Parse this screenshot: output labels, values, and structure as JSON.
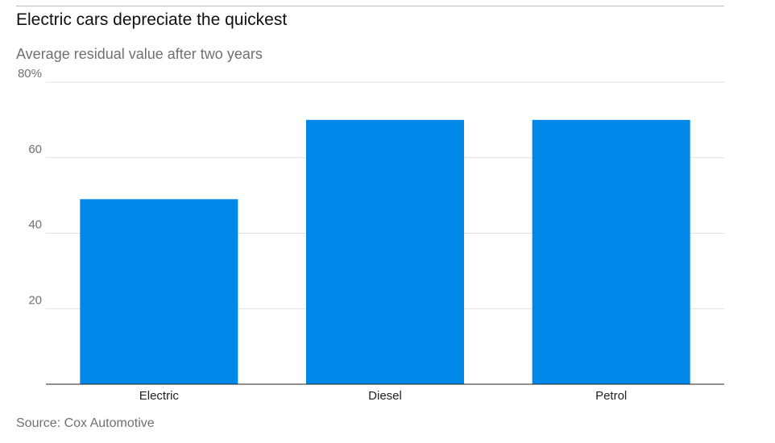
{
  "chart_data": {
    "type": "bar",
    "title": "Electric cars depreciate the quickest",
    "subtitle": "Average residual value after two years",
    "source": "Source: Cox Automotive",
    "xlabel": "",
    "ylabel": "",
    "categories": [
      "Electric",
      "Diesel",
      "Petrol"
    ],
    "values": [
      49,
      70,
      70
    ],
    "ylim": [
      0,
      80
    ],
    "yticks": [
      20,
      40,
      60,
      80
    ],
    "ytick_labels": [
      "20",
      "40",
      "60",
      "80%"
    ],
    "grid": true,
    "legend": "none",
    "bar_color": "#0088e8"
  }
}
